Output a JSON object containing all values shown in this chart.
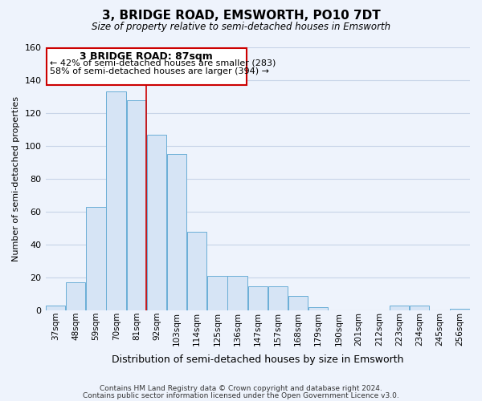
{
  "title": "3, BRIDGE ROAD, EMSWORTH, PO10 7DT",
  "subtitle": "Size of property relative to semi-detached houses in Emsworth",
  "xlabel": "Distribution of semi-detached houses by size in Emsworth",
  "ylabel": "Number of semi-detached properties",
  "bar_labels": [
    "37sqm",
    "48sqm",
    "59sqm",
    "70sqm",
    "81sqm",
    "92sqm",
    "103sqm",
    "114sqm",
    "125sqm",
    "136sqm",
    "147sqm",
    "157sqm",
    "168sqm",
    "179sqm",
    "190sqm",
    "201sqm",
    "212sqm",
    "223sqm",
    "234sqm",
    "245sqm",
    "256sqm"
  ],
  "bar_values": [
    3,
    17,
    63,
    133,
    128,
    107,
    95,
    48,
    21,
    21,
    15,
    15,
    9,
    2,
    0,
    0,
    0,
    3,
    3,
    0,
    1
  ],
  "bar_color": "#d6e4f5",
  "bar_edge_color": "#6aaed6",
  "reference_label": "3 BRIDGE ROAD: 87sqm",
  "pct_smaller": 42,
  "n_smaller": 283,
  "pct_larger": 58,
  "n_larger": 394,
  "ylim": [
    0,
    160
  ],
  "yticks": [
    0,
    20,
    40,
    60,
    80,
    100,
    120,
    140,
    160
  ],
  "footer1": "Contains HM Land Registry data © Crown copyright and database right 2024.",
  "footer2": "Contains public sector information licensed under the Open Government Licence v3.0.",
  "bg_color": "#eef3fc",
  "plot_bg_color": "#eef3fc",
  "grid_color": "#c8d4e8",
  "annotation_box_color": "#ffffff",
  "annotation_box_edge": "#cc0000",
  "ref_line_color": "#cc0000"
}
